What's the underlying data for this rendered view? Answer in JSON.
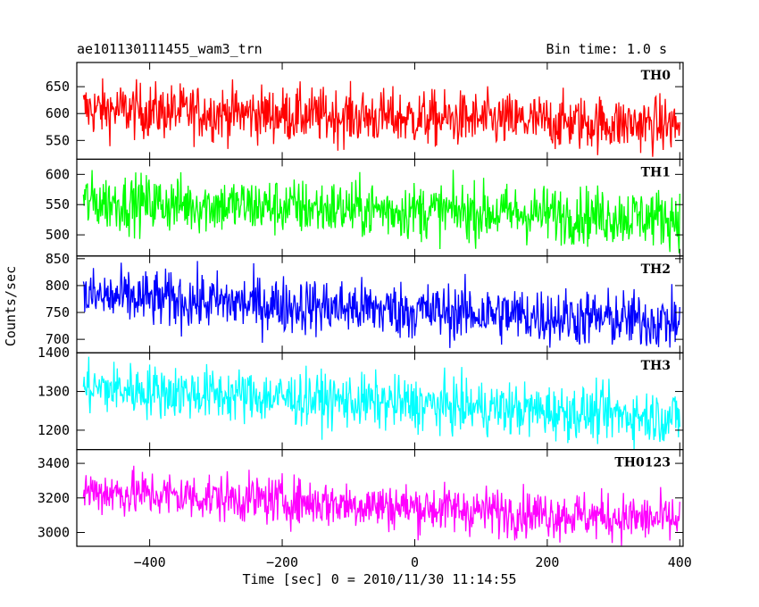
{
  "chart_data": {
    "type": "line",
    "title": "ae101130111455_wam3_trn",
    "bin_time_label": "Bin time: 1.0 s",
    "xlabel": "Time [sec] 0 = 2010/11/30 11:14:55",
    "ylabel": "Counts/sec",
    "xlim": [
      -510,
      405
    ],
    "x_ticks": [
      -400,
      -200,
      0,
      200,
      400
    ],
    "x_tick_labels": [
      "−400",
      "−200",
      "0",
      "200",
      "400"
    ],
    "x_range": [
      -500,
      400
    ],
    "grid": false,
    "series": [
      {
        "name": "TH0",
        "color": "#ff0000",
        "ylim": [
          515,
          695
        ],
        "y_ticks": [
          550,
          600,
          650
        ],
        "start_mean": 608,
        "end_mean": 578,
        "noise": 26
      },
      {
        "name": "TH1",
        "color": "#00ff00",
        "ylim": [
          465,
          625
        ],
        "y_ticks": [
          500,
          550,
          600
        ],
        "start_mean": 555,
        "end_mean": 528,
        "noise": 24
      },
      {
        "name": "TH2",
        "color": "#0000ff",
        "ylim": [
          675,
          855
        ],
        "y_ticks": [
          700,
          750,
          800,
          850
        ],
        "start_mean": 780,
        "end_mean": 732,
        "noise": 27
      },
      {
        "name": "TH3",
        "color": "#00ffff",
        "ylim": [
          1150,
          1400
        ],
        "y_ticks": [
          1200,
          1300,
          1400
        ],
        "start_mean": 1310,
        "end_mean": 1232,
        "noise": 35
      },
      {
        "name": "TH0123",
        "color": "#ff00ff",
        "ylim": [
          2920,
          3480
        ],
        "y_ticks": [
          3000,
          3200,
          3400
        ],
        "start_mean": 3240,
        "end_mean": 3070,
        "noise": 70
      }
    ]
  }
}
